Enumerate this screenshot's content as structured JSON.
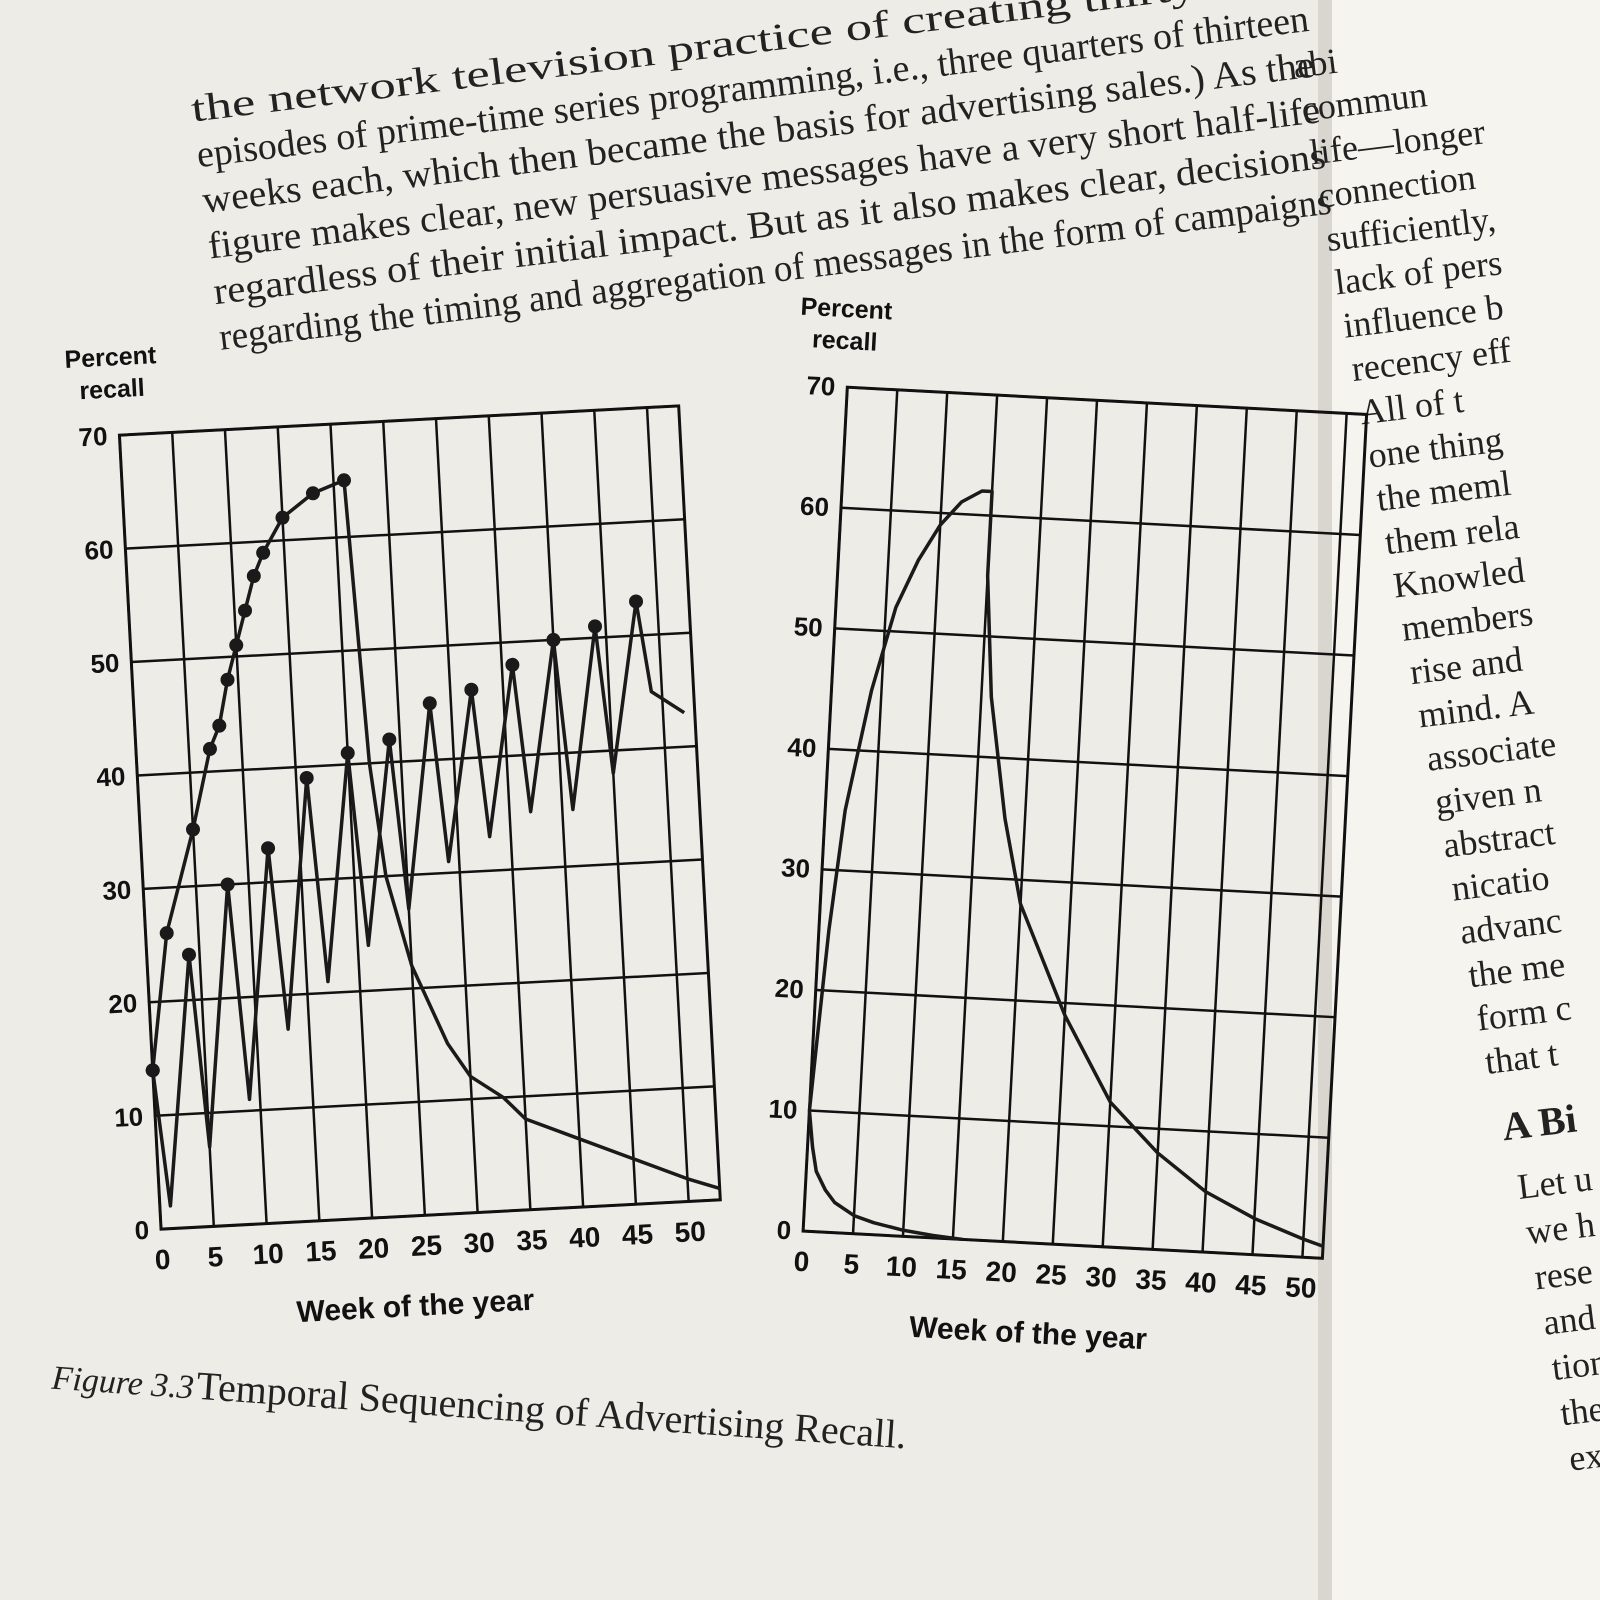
{
  "text": {
    "left_lines": [
      "the network television practice of creating thirty-nine",
      "episodes of prime-time series programming, i.e., three quarters of thirteen",
      "weeks each, which then became the basis for advertising sales.) As the",
      "figure makes clear, new persuasive messages have a very short half-life",
      "regardless of their initial impact. But as it also makes clear, decisions",
      "regarding the timing and aggregation of messages in the form of campaigns"
    ],
    "right_lines": [
      "abi",
      "commun",
      "life—longer",
      "connection",
      "sufficiently,",
      "lack of pers",
      "influence b",
      "recency eff",
      "All of t",
      "one thing",
      "the meml",
      "them rela",
      "Knowled",
      "members",
      "rise and",
      "mind. A",
      "associate",
      "given n",
      "abstract",
      "nicatio",
      "advanc",
      "the me",
      "form c",
      "that t"
    ],
    "right_heading": "A Bi",
    "right_lines_2": [
      "Let u",
      "we h",
      "rese",
      "and",
      "tion",
      "the",
      "exp"
    ]
  },
  "caption": {
    "label": "Figure 3.3",
    "title": "Temporal Sequencing of Advertising Recall."
  },
  "chart_data": [
    {
      "type": "line",
      "y_label": [
        "Percent",
        "recall"
      ],
      "x_label": "Week of the year",
      "xlim": [
        0,
        53
      ],
      "ylim": [
        0,
        70
      ],
      "xticks": [
        0,
        5,
        10,
        15,
        20,
        25,
        30,
        35,
        40,
        45,
        50
      ],
      "yticks": [
        0,
        10,
        20,
        30,
        40,
        50,
        60,
        70
      ],
      "grid": true,
      "series": [
        {
          "color": "#1a1a1a",
          "markers": "all",
          "x": [
            0,
            2,
            5,
            7,
            8,
            9,
            10,
            11,
            12,
            13,
            15,
            18,
            21
          ],
          "values": [
            14,
            26,
            35,
            42,
            44,
            48,
            51,
            54,
            57,
            59,
            62,
            64,
            65
          ]
        },
        {
          "color": "#1a1a1a",
          "markers": "none",
          "x": [
            21,
            22,
            23,
            25,
            28,
            30,
            33,
            35,
            40,
            45,
            50,
            53
          ],
          "values": [
            65,
            40,
            30,
            22,
            15,
            12,
            10,
            8,
            6,
            4,
            2,
            1
          ]
        },
        {
          "color": "#1a1a1a",
          "markers": "peaks",
          "x": [
            0,
            1,
            4,
            5,
            8,
            9,
            12,
            13,
            16,
            17,
            20,
            21,
            24,
            25,
            28,
            29,
            32,
            33,
            36,
            37,
            40,
            41,
            44,
            45,
            48,
            49,
            52
          ],
          "values": [
            14,
            2,
            24,
            7,
            30,
            11,
            33,
            17,
            39,
            21,
            41,
            24,
            42,
            27,
            45,
            31,
            46,
            33,
            48,
            35,
            50,
            35,
            51,
            38,
            53,
            45,
            43
          ]
        }
      ]
    },
    {
      "type": "line",
      "y_label": [
        "Percent",
        "recall"
      ],
      "x_label": "Week of the year",
      "xlim": [
        0,
        52
      ],
      "ylim": [
        0,
        70
      ],
      "xticks": [
        0,
        5,
        10,
        15,
        20,
        25,
        30,
        35,
        40,
        45,
        50
      ],
      "yticks": [
        0,
        10,
        20,
        30,
        40,
        50,
        60,
        70
      ],
      "grid": true,
      "series": [
        {
          "color": "#1a1a1a",
          "markers": "none",
          "x": [
            0,
            1,
            2,
            4,
            6,
            8,
            10,
            12,
            14,
            15,
            15,
            16,
            18,
            20,
            25,
            30,
            35,
            40,
            45,
            50,
            52
          ],
          "values": [
            10,
            25,
            35,
            45,
            52,
            56,
            59,
            61,
            62,
            62,
            55,
            45,
            35,
            28,
            19,
            12,
            8,
            5,
            3,
            1.5,
            1
          ]
        },
        {
          "color": "#1a1a1a",
          "markers": "none",
          "x": [
            0,
            0.5,
            1,
            2,
            3,
            5,
            7,
            10,
            13,
            16
          ],
          "values": [
            10,
            7,
            5,
            3.5,
            2.5,
            1.5,
            1,
            0.5,
            0.2,
            0
          ]
        }
      ]
    }
  ]
}
